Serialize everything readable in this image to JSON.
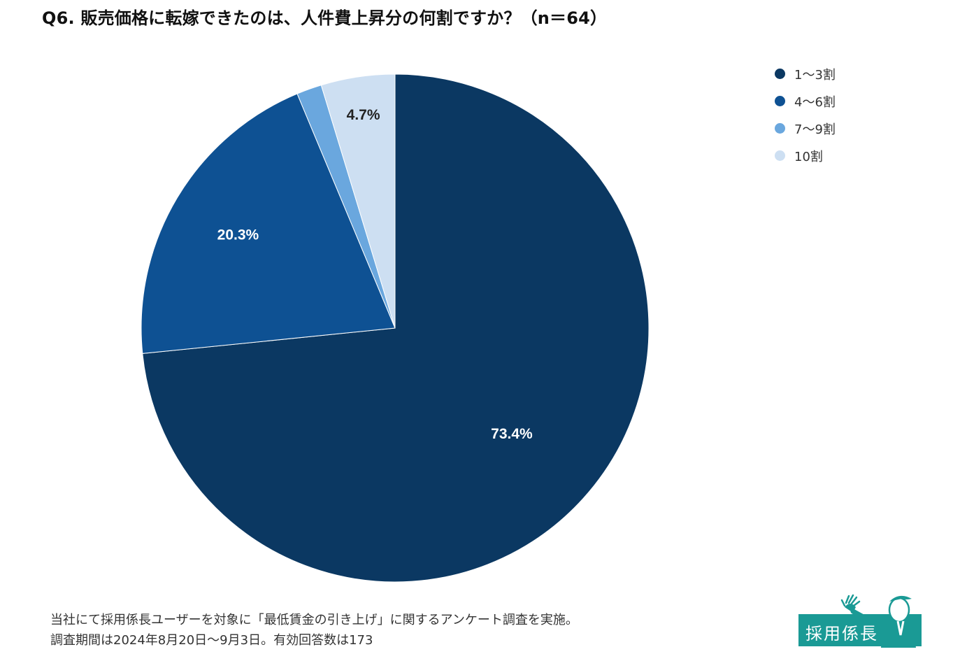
{
  "title": "Q6. 販売価格に転嫁できたのは、人件費上昇分の何割ですか？（n＝64）",
  "chart_data": {
    "type": "pie",
    "categories": [
      "1〜3割",
      "4〜6割",
      "7〜9割",
      "10割"
    ],
    "values": [
      73.4,
      20.3,
      1.6,
      4.7
    ],
    "labels": [
      "73.4%",
      "20.3%",
      "",
      "4.7%"
    ],
    "colors": [
      "#0b3862",
      "#0e5193",
      "#6aa7de",
      "#cddff2"
    ],
    "label_colors": [
      "#ffffff",
      "#ffffff",
      "#222222",
      "#222222"
    ],
    "start": "12 o'clock",
    "direction": "clockwise",
    "legend_position": "right"
  },
  "footer": {
    "line1": "当社にて採用係長ユーザーを対象に「最低賃金の引き上げ」に関するアンケート調査を実施。",
    "line2": "調査期間は2024年8月20日〜9月3日。有効回答数は173"
  },
  "logo": {
    "text": "採用係長"
  }
}
